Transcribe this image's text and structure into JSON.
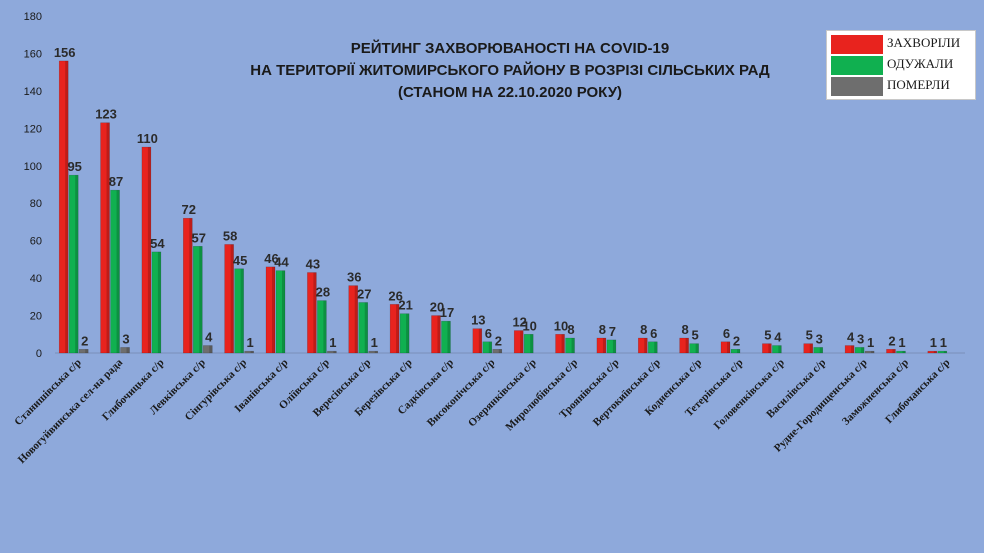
{
  "title_lines": [
    "РЕЙТИНГ ЗАХВОРЮВАНОСТІ НА COVID-19",
    "НА ТЕРИТОРІЇ ЖИТОМИРСЬКОГО РАЙОНУ В РОЗРІЗІ СІЛЬСЬКИХ РАД",
    "(СТАНОМ НА 22.10.2020 РОКУ)"
  ],
  "legend": [
    {
      "label": "ЗАХВОРІЛИ",
      "color": "#E8231E"
    },
    {
      "label": "ОДУЖАЛИ",
      "color": "#10B050"
    },
    {
      "label": "ПОМЕРЛИ",
      "color": "#6E6E6E"
    }
  ],
  "chart_data": {
    "type": "bar",
    "title": "РЕЙТИНГ ЗАХВОРЮВАНОСТІ НА COVID-19 НА ТЕРИТОРІЇ ЖИТОМИРСЬКОГО РАЙОНУ В РОЗРІЗІ СІЛЬСЬКИХ РАД (СТАНОМ НА 22.10.2020 РОКУ)",
    "xlabel": "",
    "ylabel": "",
    "ylim": [
      0,
      180
    ],
    "yticks": [
      0,
      20,
      40,
      60,
      80,
      100,
      120,
      140,
      160,
      180
    ],
    "grid": false,
    "legend_position": "top-right",
    "categories": [
      "Станишівська с/р",
      "Новогуйвинська сел-на рада",
      "Глибочицька с/р",
      "Левківська с/р",
      "Сінгурівська с/р",
      "Іванівська с/р",
      "Оліївська с/р",
      "Вересівська с/р",
      "Березівська с/р",
      "Садківська с/р",
      "Високопічська с/р",
      "Озерянківська с/р",
      "Миролюбівська с/р",
      "Троянівська с/р",
      "Вертокиївська с/р",
      "Кодненська с/р",
      "Тетерівська с/р",
      "Головенківська с/р",
      "Василівська с/р",
      "Рудне-Городищенська с/р",
      "Заможненська с/р",
      "Глибочанська с/р"
    ],
    "series": [
      {
        "name": "ЗАХВОРІЛИ",
        "color": "#E8231E",
        "values": [
          156,
          123,
          110,
          72,
          58,
          46,
          43,
          36,
          26,
          20,
          13,
          12,
          10,
          8,
          8,
          8,
          6,
          5,
          5,
          4,
          2,
          1
        ]
      },
      {
        "name": "ОДУЖАЛИ",
        "color": "#10B050",
        "values": [
          95,
          87,
          54,
          57,
          45,
          44,
          28,
          27,
          21,
          17,
          6,
          10,
          8,
          7,
          6,
          5,
          2,
          4,
          3,
          3,
          1,
          1
        ]
      },
      {
        "name": "ПОМЕРЛИ",
        "color": "#6E6E6E",
        "values": [
          2,
          3,
          null,
          4,
          1,
          null,
          1,
          1,
          null,
          null,
          2,
          null,
          null,
          null,
          null,
          null,
          null,
          null,
          null,
          1,
          null,
          null
        ]
      }
    ]
  }
}
